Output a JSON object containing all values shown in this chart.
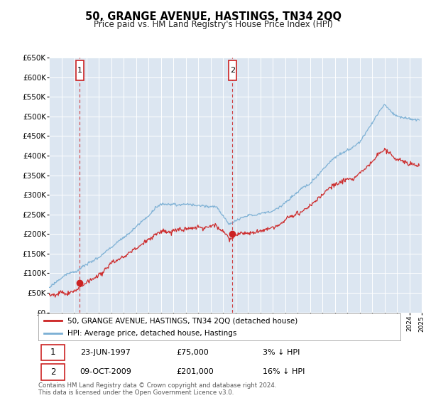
{
  "title": "50, GRANGE AVENUE, HASTINGS, TN34 2QQ",
  "subtitle": "Price paid vs. HM Land Registry's House Price Index (HPI)",
  "background_color": "#dce6f1",
  "grid_color": "#ffffff",
  "line1_color": "#cc2222",
  "line2_color": "#7aafd4",
  "marker1_date": 1997.47,
  "marker1_price": 75000,
  "marker2_date": 2009.77,
  "marker2_price": 201000,
  "ylim": [
    0,
    650000
  ],
  "xlim": [
    1995.0,
    2025.0
  ],
  "yticks": [
    0,
    50000,
    100000,
    150000,
    200000,
    250000,
    300000,
    350000,
    400000,
    450000,
    500000,
    550000,
    600000,
    650000
  ],
  "legend1": "50, GRANGE AVENUE, HASTINGS, TN34 2QQ (detached house)",
  "legend2": "HPI: Average price, detached house, Hastings",
  "annotation1_text": "23-JUN-1997",
  "annotation1_price": "£75,000",
  "annotation1_hpi": "3% ↓ HPI",
  "annotation2_text": "09-OCT-2009",
  "annotation2_price": "£201,000",
  "annotation2_hpi": "16% ↓ HPI",
  "footer": "Contains HM Land Registry data © Crown copyright and database right 2024.\nThis data is licensed under the Open Government Licence v3.0."
}
